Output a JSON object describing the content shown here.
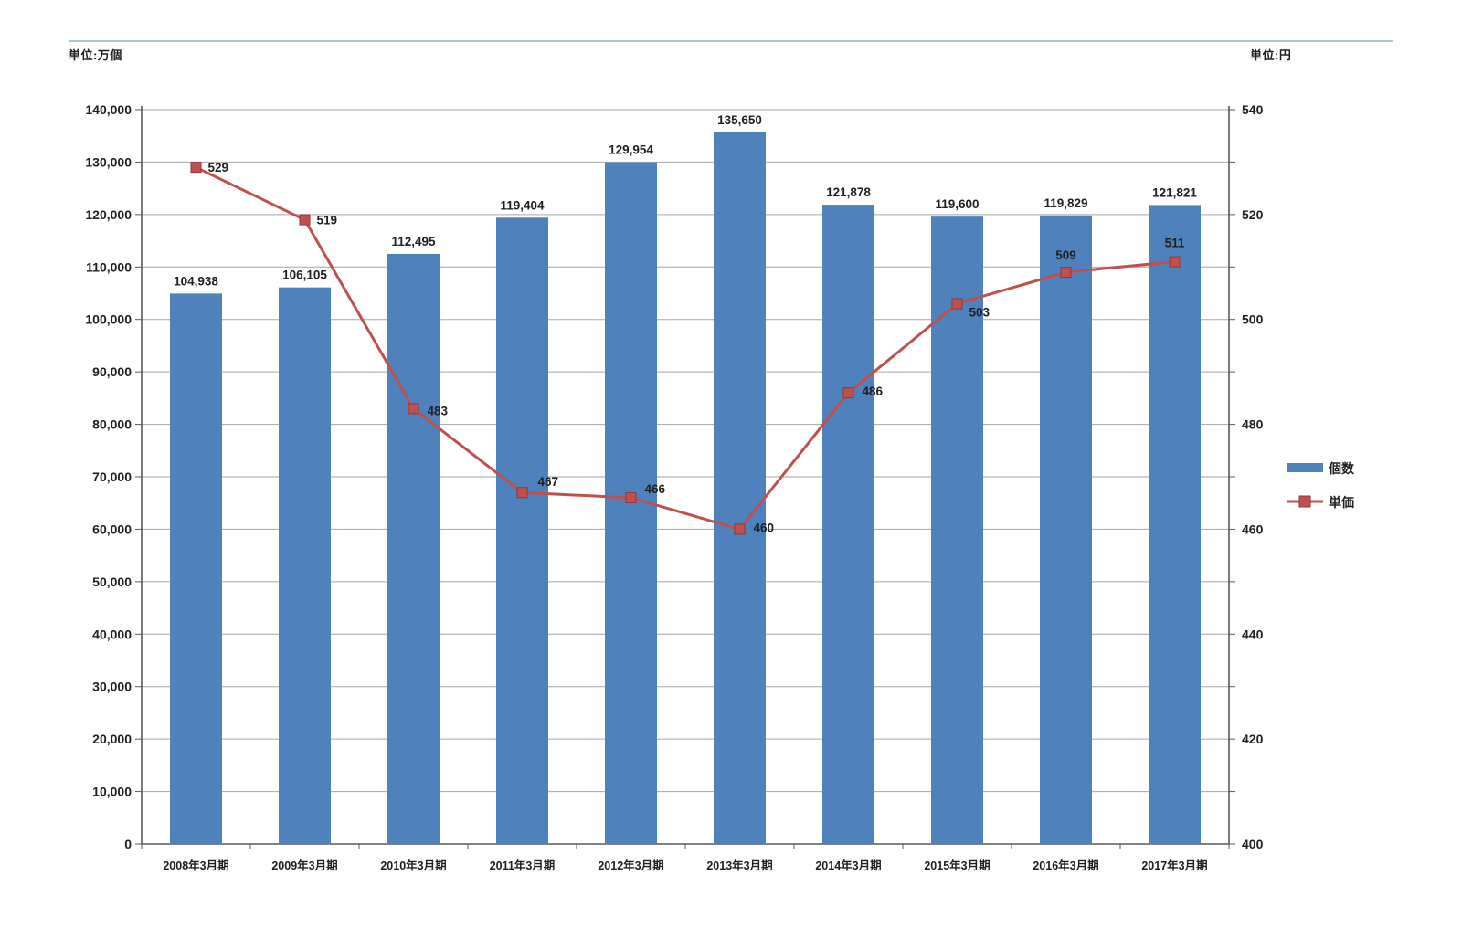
{
  "page": {
    "left_unit_label": "単位:万個",
    "right_unit_label": "単位:円"
  },
  "chart_data": {
    "type": "combo-bar-line",
    "title": "",
    "categories": [
      "2008年3月期",
      "2009年3月期",
      "2010年3月期",
      "2011年3月期",
      "2012年3月期",
      "2013年3月期",
      "2014年3月期",
      "2015年3月期",
      "2016年3月期",
      "2017年3月期"
    ],
    "series": [
      {
        "name": "個数",
        "type": "bar",
        "axis": "left",
        "color": "#4f81bd",
        "values": [
          104938,
          106105,
          112495,
          119404,
          129954,
          135650,
          121878,
          119600,
          119829,
          121821
        ],
        "labels": [
          "104,938",
          "106,105",
          "112,495",
          "119,404",
          "129,954",
          "135,650",
          "121,878",
          "119,600",
          "119,829",
          "121,821"
        ]
      },
      {
        "name": "単価",
        "type": "line",
        "axis": "right",
        "color": "#c0504d",
        "marker": "square",
        "values": [
          529,
          519,
          483,
          467,
          466,
          460,
          486,
          503,
          509,
          511
        ],
        "labels": [
          "529",
          "519",
          "483",
          "467",
          "466",
          "460",
          "486",
          "503",
          "509",
          "511"
        ]
      }
    ],
    "left_axis": {
      "unit": "単位:万個",
      "min": 0,
      "max": 140000,
      "tick_step": 10000,
      "tick_labels": [
        "0",
        "10,000",
        "20,000",
        "30,000",
        "40,000",
        "50,000",
        "60,000",
        "70,000",
        "80,000",
        "90,000",
        "100,000",
        "110,000",
        "120,000",
        "130,000",
        "140,000"
      ]
    },
    "right_axis": {
      "unit": "単位:円",
      "min": 400,
      "max": 540,
      "gridline_step": 10,
      "label_step": 20,
      "tick_labels": [
        "400",
        "420",
        "440",
        "460",
        "480",
        "500",
        "520",
        "540"
      ]
    },
    "grid": true,
    "legend_position": "right",
    "colors": {
      "bar": "#4f81bd",
      "line": "#c0504d",
      "marker_border": "#943634",
      "gridline": "#a6a6a6",
      "axis": "#595959",
      "text": "#1f1f1f",
      "top_rule": "#a9c1dd"
    }
  }
}
